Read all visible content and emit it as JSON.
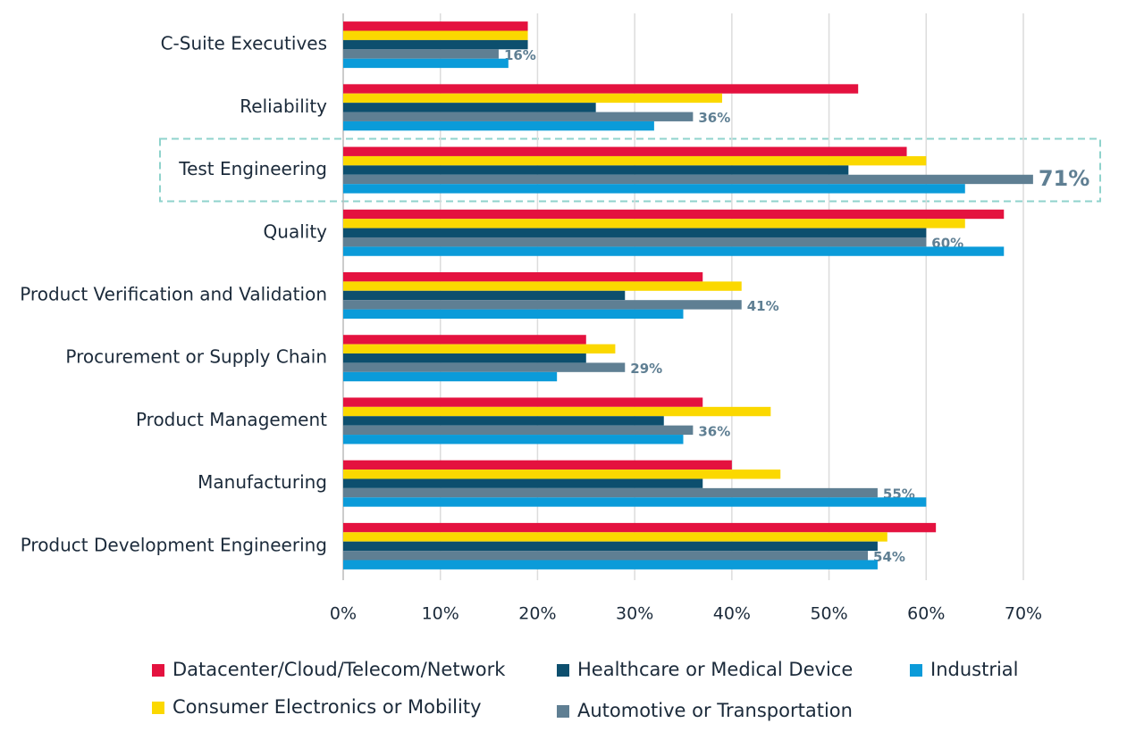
{
  "chart_data": {
    "type": "bar",
    "orientation": "horizontal",
    "categories": [
      "C-Suite Executives",
      "Reliability",
      "Test Engineering",
      "Quality",
      "Product Verification and Validation",
      "Procurement or Supply Chain",
      "Product Management",
      "Manufacturing",
      "Product Development Engineering"
    ],
    "series": [
      {
        "name": "Datacenter/Cloud/Telecom/Network",
        "color": "#e4123f",
        "values": [
          19,
          53,
          58,
          68,
          37,
          25,
          37,
          40,
          61
        ]
      },
      {
        "name": "Consumer Electronics or Mobility",
        "color": "#fbd800",
        "values": [
          19,
          39,
          60,
          64,
          41,
          28,
          44,
          45,
          56
        ]
      },
      {
        "name": "Healthcare or Medical Device",
        "color": "#0d4f6e",
        "values": [
          19,
          26,
          52,
          60,
          29,
          25,
          33,
          37,
          55
        ]
      },
      {
        "name": "Automotive or Transportation",
        "color": "#5f7f93",
        "values": [
          16,
          36,
          71,
          60,
          41,
          29,
          36,
          55,
          54
        ],
        "value_labels": [
          "16%",
          "36%",
          "71%",
          "60%",
          "41%",
          "29%",
          "36%",
          "55%",
          "54%"
        ]
      },
      {
        "name": "Industrial",
        "color": "#0b9bd9",
        "values": [
          17,
          32,
          64,
          68,
          35,
          22,
          35,
          60,
          55
        ]
      }
    ],
    "xlim": [
      0,
      70
    ],
    "xticks": [
      {
        "value": 0,
        "label": "0%"
      },
      {
        "value": 10,
        "label": "10%"
      },
      {
        "value": 20,
        "label": "20%"
      },
      {
        "value": 30,
        "label": "30%"
      },
      {
        "value": 40,
        "label": "40%"
      },
      {
        "value": 50,
        "label": "50%"
      },
      {
        "value": 60,
        "label": "60%"
      },
      {
        "value": 70,
        "label": "70%"
      }
    ],
    "grid": true,
    "highlight_category": 2,
    "legend_position": "bottom"
  }
}
